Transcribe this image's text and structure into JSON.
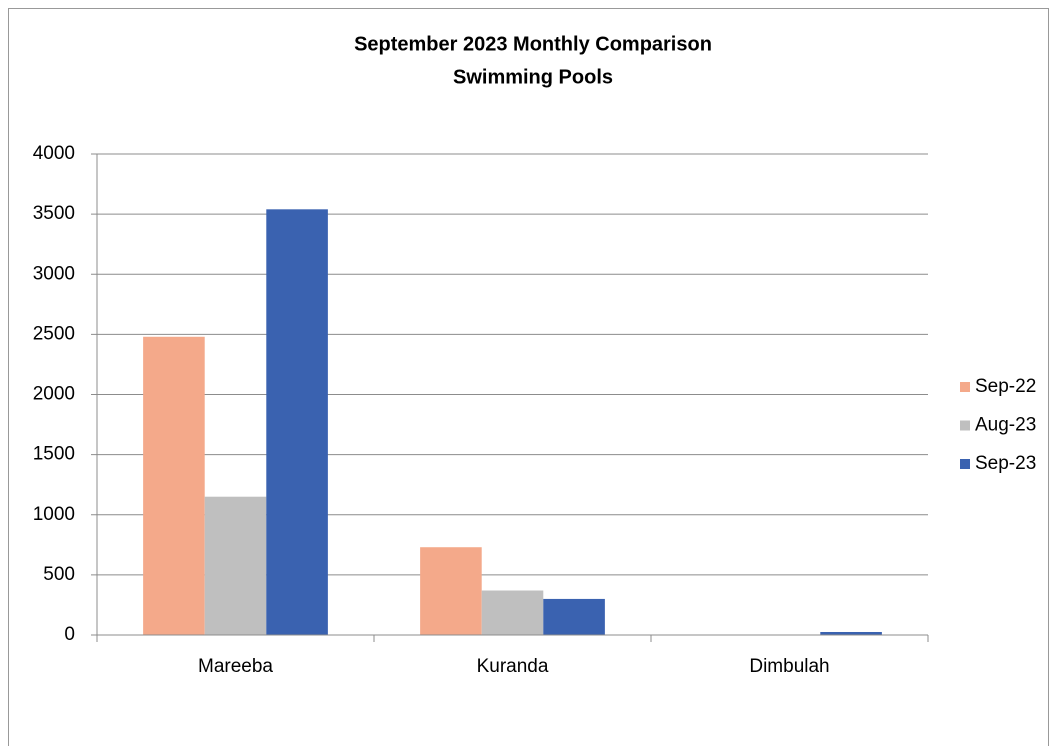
{
  "chart_data": {
    "type": "bar",
    "title": "September 2023 Monthly Comparison",
    "subtitle": "Swimming Pools",
    "categories": [
      "Mareeba",
      "Kuranda",
      "Dimbulah"
    ],
    "series": [
      {
        "name": "Sep-22",
        "color": "#f4a98a",
        "values": [
          2480,
          730,
          0
        ]
      },
      {
        "name": "Aug-23",
        "color": "#bfbfbf",
        "values": [
          1150,
          370,
          0
        ]
      },
      {
        "name": "Sep-23",
        "color": "#3a62b0",
        "values": [
          3540,
          300,
          25
        ]
      }
    ],
    "ylim": [
      0,
      4000
    ],
    "yticks": [
      0,
      500,
      1000,
      1500,
      2000,
      2500,
      3000,
      3500,
      4000
    ],
    "grid": true,
    "legend": "right"
  }
}
